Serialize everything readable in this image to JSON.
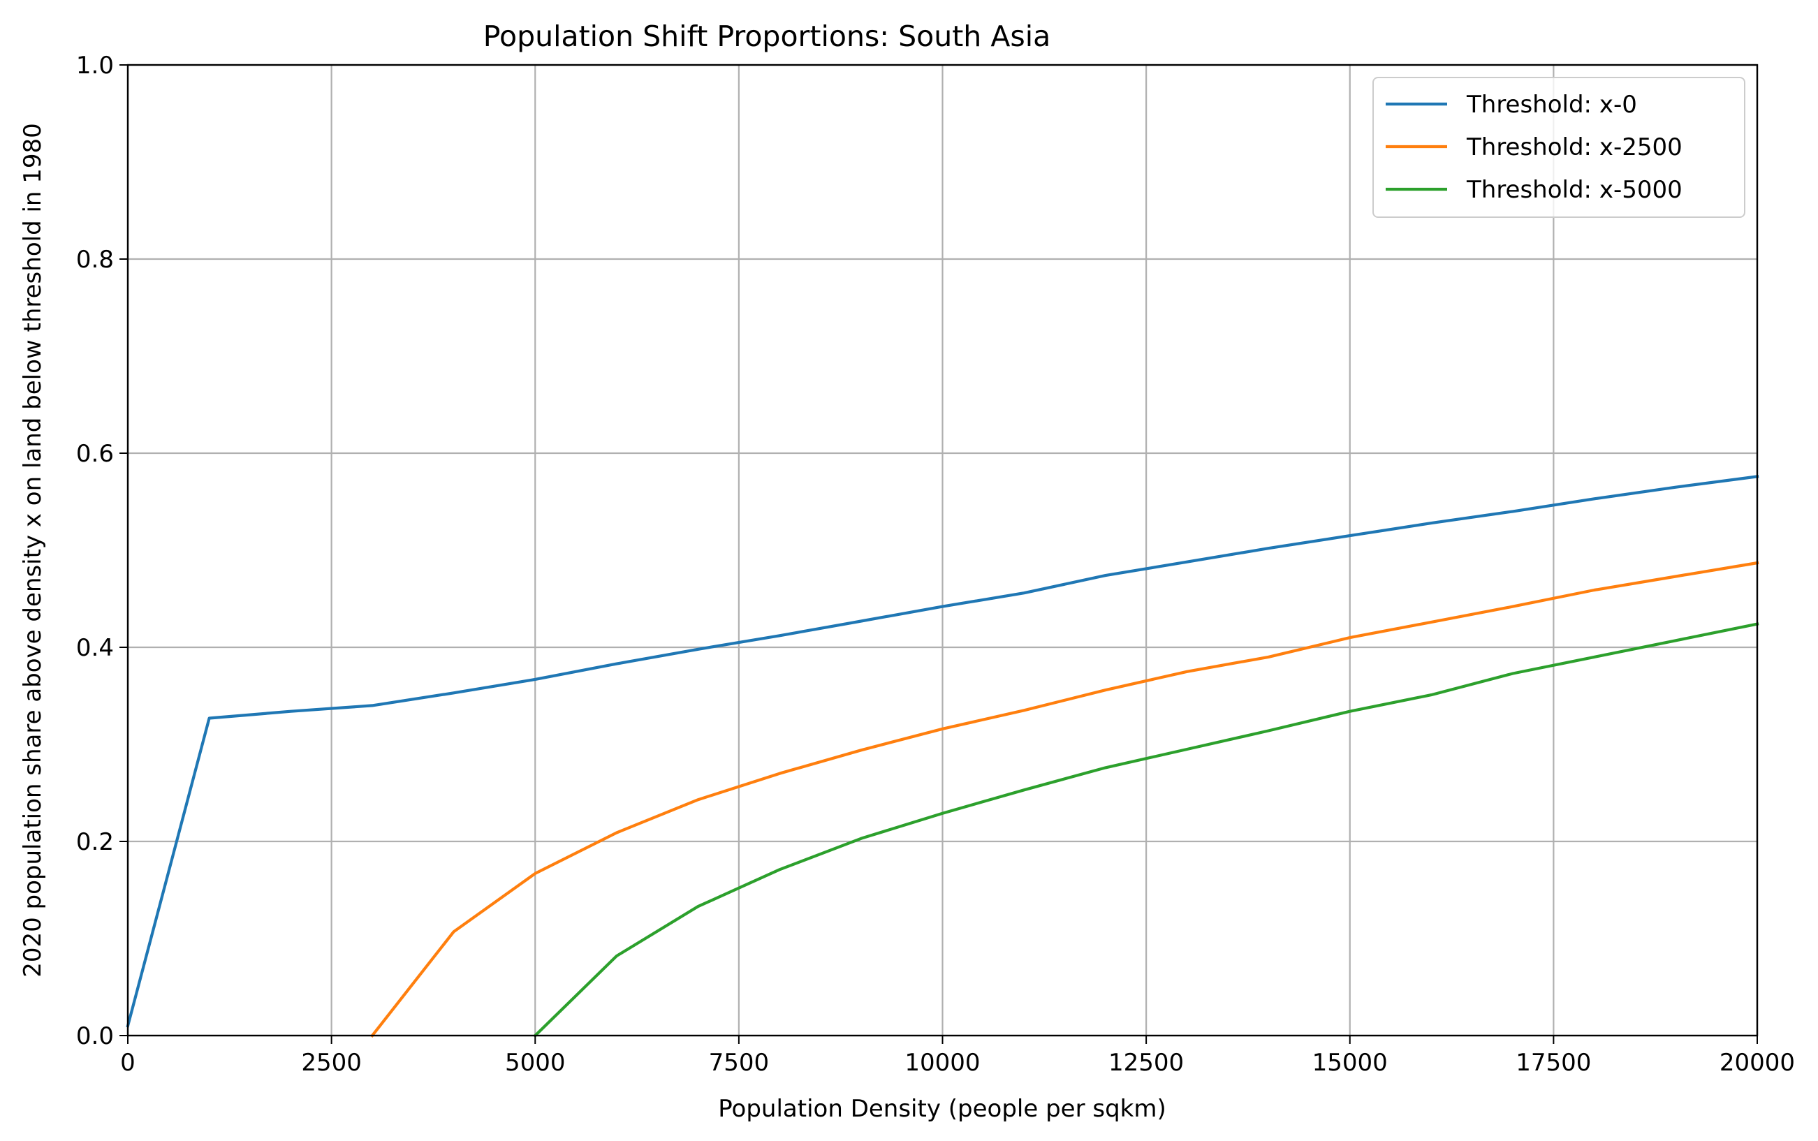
{
  "chart_data": {
    "type": "line",
    "title": "Population Shift Proportions: South Asia",
    "xlabel": "Population Density (people per sqkm)",
    "ylabel": "2020 population share above density x on land below threshold in 1980",
    "xlim": [
      0,
      20000
    ],
    "ylim": [
      0.0,
      1.0
    ],
    "x_ticks": [
      0,
      2500,
      5000,
      7500,
      10000,
      12500,
      15000,
      17500,
      20000
    ],
    "x_tick_labels": [
      "0",
      "2500",
      "5000",
      "7500",
      "10000",
      "12500",
      "15000",
      "17500",
      "20000"
    ],
    "y_ticks": [
      0.0,
      0.2,
      0.4,
      0.6,
      0.8,
      1.0
    ],
    "y_tick_labels": [
      "0.0",
      "0.2",
      "0.4",
      "0.6",
      "0.8",
      "1.0"
    ],
    "grid": true,
    "legend_position": "top-right",
    "series": [
      {
        "name": "Threshold: x-0",
        "color": "#1f77b4",
        "x": [
          0,
          1000,
          2000,
          3000,
          4000,
          5000,
          6000,
          7000,
          8000,
          9000,
          10000,
          11000,
          12000,
          13000,
          14000,
          15000,
          16000,
          17000,
          18000,
          19000,
          20000
        ],
        "y": [
          0.01,
          0.327,
          0.334,
          0.34,
          0.353,
          0.367,
          0.383,
          0.398,
          0.412,
          0.427,
          0.442,
          0.456,
          0.474,
          0.488,
          0.502,
          0.515,
          0.528,
          0.54,
          0.553,
          0.565,
          0.576
        ]
      },
      {
        "name": "Threshold: x-2500",
        "color": "#ff7f0e",
        "x": [
          3000,
          4000,
          5000,
          6000,
          7000,
          8000,
          9000,
          10000,
          11000,
          12000,
          13000,
          14000,
          15000,
          16000,
          17000,
          18000,
          19000,
          20000
        ],
        "y": [
          0.0,
          0.107,
          0.167,
          0.209,
          0.243,
          0.27,
          0.294,
          0.316,
          0.335,
          0.356,
          0.375,
          0.39,
          0.41,
          0.426,
          0.442,
          0.459,
          0.473,
          0.487
        ]
      },
      {
        "name": "Threshold: x-5000",
        "color": "#2ca02c",
        "x": [
          5000,
          6000,
          7000,
          8000,
          9000,
          10000,
          11000,
          12000,
          13000,
          14000,
          15000,
          16000,
          17000,
          18000,
          19000,
          20000
        ],
        "y": [
          0.0,
          0.082,
          0.133,
          0.171,
          0.203,
          0.229,
          0.253,
          0.276,
          0.295,
          0.314,
          0.334,
          0.351,
          0.373,
          0.39,
          0.407,
          0.424
        ]
      }
    ]
  }
}
